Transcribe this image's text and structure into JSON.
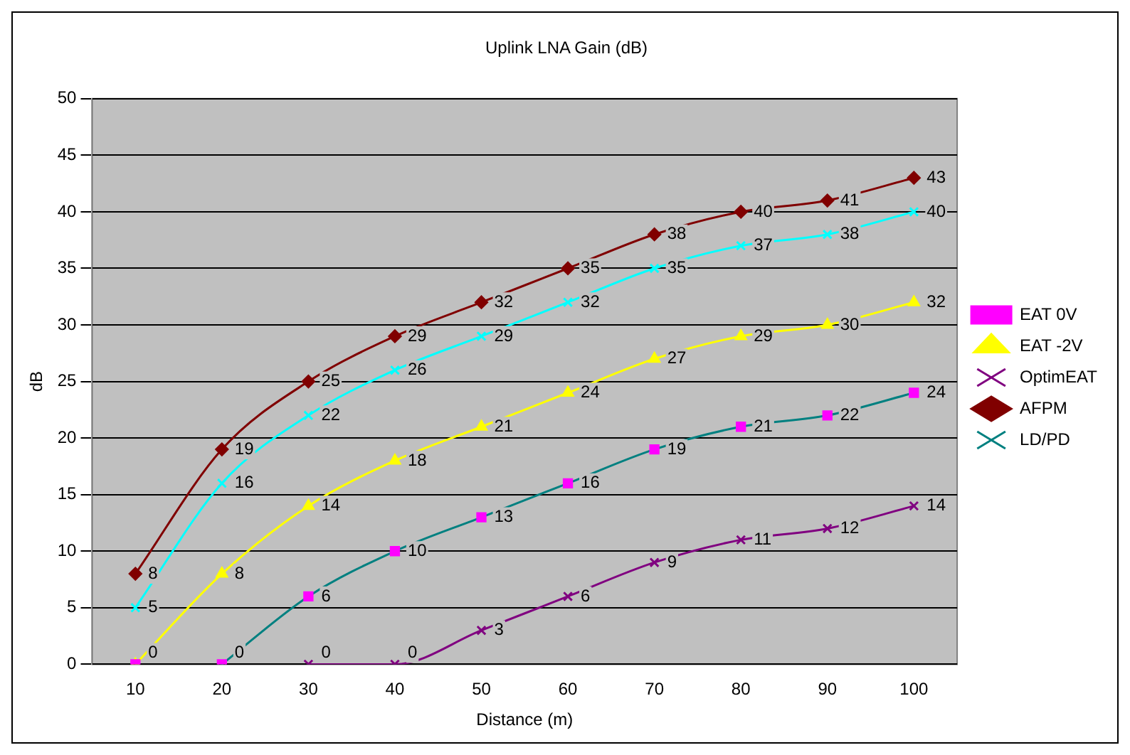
{
  "chart_data": {
    "type": "line",
    "title": "Uplink LNA Gain (dB)",
    "xlabel": "Distance (m)",
    "ylabel": "dB",
    "categories": [
      "10",
      "20",
      "30",
      "40",
      "50",
      "60",
      "70",
      "80",
      "90",
      "100"
    ],
    "ylim": [
      0,
      50
    ],
    "yticks": [
      0,
      5,
      10,
      15,
      20,
      25,
      30,
      35,
      40,
      45,
      50
    ],
    "grid": "y",
    "legend": "right",
    "data_labels": true,
    "series": [
      {
        "name": "EAT 0V",
        "type": "scatter",
        "color": "#ff00ff",
        "marker": "square",
        "values": [
          0,
          0,
          6,
          10,
          13,
          16,
          19,
          21,
          22,
          24
        ],
        "value_labels": [
          null,
          "0",
          "6",
          "10",
          "13",
          "16",
          "19",
          "21",
          "22",
          "24"
        ]
      },
      {
        "name": "EAT -2V",
        "color": "#ffff00",
        "marker": "triangle",
        "values": [
          0,
          8,
          14,
          18,
          21,
          24,
          27,
          29,
          30,
          32
        ]
      },
      {
        "color": "#00ffff",
        "marker": "cross",
        "values": [
          5,
          16,
          22,
          26,
          29,
          32,
          35,
          37,
          38,
          40
        ]
      },
      {
        "name": "OptimEAT",
        "color": "#800080",
        "marker": "cross",
        "values": [
          null,
          null,
          0,
          0,
          3,
          6,
          9,
          11,
          12,
          14
        ]
      },
      {
        "name": "AFPM",
        "color": "#800000",
        "marker": "diamond",
        "values": [
          8,
          19,
          25,
          29,
          32,
          35,
          38,
          40,
          41,
          43
        ]
      },
      {
        "name": "LD/PD",
        "color": "#008080",
        "marker": "cross",
        "values": [
          null,
          0,
          6,
          10,
          13,
          16,
          19,
          21,
          22,
          24
        ],
        "value_labels": [
          null,
          null,
          null,
          null,
          null,
          null,
          null,
          null,
          null,
          null
        ]
      }
    ]
  }
}
